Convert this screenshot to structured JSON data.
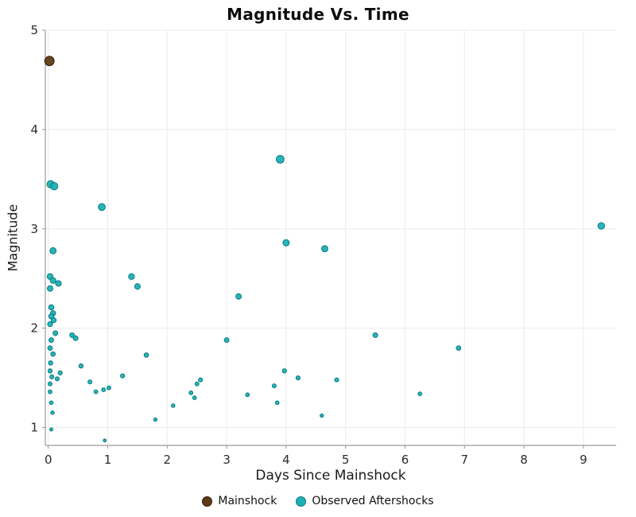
{
  "chart": {
    "title": "Magnitude Vs. Time",
    "xlabel": "Days Since Mainshock",
    "ylabel": "Magnitude"
  },
  "chart_data": {
    "type": "scatter",
    "title": "Magnitude Vs. Time",
    "xlabel": "Days Since Mainshock",
    "ylabel": "Magnitude",
    "xlim": [
      -0.05,
      9.55
    ],
    "ylim": [
      0.82,
      5.0
    ],
    "x_ticks": [
      0,
      1,
      2,
      3,
      4,
      5,
      6,
      7,
      8,
      9
    ],
    "y_ticks": [
      1,
      2,
      3,
      4,
      5
    ],
    "grid": true,
    "grid_color": "#ececec",
    "axis_color": "#9b9b9b",
    "legend_position": "bottom-center",
    "marker_note": "marker size scales with magnitude",
    "series": [
      {
        "name": "Mainshock",
        "color": "#5e3a18",
        "edge": "#321c05",
        "points": [
          [
            0.02,
            4.69
          ]
        ]
      },
      {
        "name": "Observed Aftershocks",
        "color": "#1cb0b4",
        "edge": "#0b7b80",
        "points": [
          [
            0.04,
            3.45
          ],
          [
            0.1,
            3.43
          ],
          [
            0.08,
            2.78
          ],
          [
            0.03,
            2.52
          ],
          [
            0.08,
            2.48
          ],
          [
            0.17,
            2.45
          ],
          [
            0.03,
            2.4
          ],
          [
            0.05,
            2.21
          ],
          [
            0.08,
            2.15
          ],
          [
            0.05,
            2.12
          ],
          [
            0.09,
            2.08
          ],
          [
            0.03,
            2.04
          ],
          [
            0.12,
            1.95
          ],
          [
            0.05,
            1.88
          ],
          [
            0.03,
            1.8
          ],
          [
            0.08,
            1.74
          ],
          [
            0.04,
            1.65
          ],
          [
            0.03,
            1.57
          ],
          [
            0.2,
            1.55
          ],
          [
            0.06,
            1.51
          ],
          [
            0.15,
            1.49
          ],
          [
            0.03,
            1.44
          ],
          [
            0.03,
            1.36
          ],
          [
            0.05,
            1.25
          ],
          [
            0.07,
            1.15
          ],
          [
            0.05,
            0.98
          ],
          [
            0.4,
            1.93
          ],
          [
            0.46,
            1.9
          ],
          [
            0.55,
            1.62
          ],
          [
            0.7,
            1.46
          ],
          [
            0.8,
            1.36
          ],
          [
            0.9,
            3.22
          ],
          [
            0.93,
            1.38
          ],
          [
            1.02,
            1.4
          ],
          [
            0.95,
            0.87
          ],
          [
            1.25,
            1.52
          ],
          [
            1.4,
            2.52
          ],
          [
            1.5,
            2.42
          ],
          [
            1.65,
            1.73
          ],
          [
            1.8,
            1.08
          ],
          [
            2.1,
            1.22
          ],
          [
            2.4,
            1.35
          ],
          [
            2.46,
            1.3
          ],
          [
            2.5,
            1.44
          ],
          [
            2.56,
            1.48
          ],
          [
            3.0,
            1.88
          ],
          [
            3.2,
            2.32
          ],
          [
            3.35,
            1.33
          ],
          [
            3.8,
            1.42
          ],
          [
            3.85,
            1.25
          ],
          [
            3.9,
            3.7
          ],
          [
            3.97,
            1.57
          ],
          [
            4.0,
            2.86
          ],
          [
            4.2,
            1.5
          ],
          [
            4.6,
            1.12
          ],
          [
            4.65,
            2.8
          ],
          [
            4.85,
            1.48
          ],
          [
            5.5,
            1.93
          ],
          [
            6.25,
            1.34
          ],
          [
            6.9,
            1.8
          ],
          [
            9.3,
            3.03
          ]
        ]
      }
    ]
  }
}
